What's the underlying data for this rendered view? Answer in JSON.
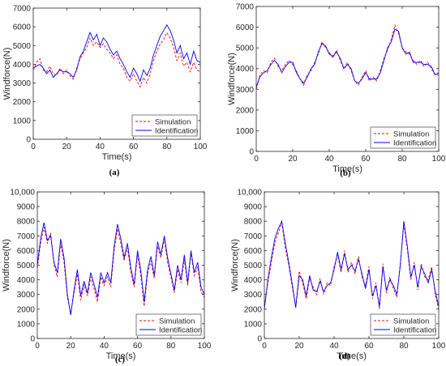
{
  "figure_panels": [
    "(a)",
    "(b)",
    "(c)",
    "(d)"
  ],
  "chart_data": [
    {
      "type": "line",
      "panel_label": "(a)",
      "xlabel": "Time(s)",
      "ylabel": "Windforce(N)",
      "xlim": [
        0,
        100
      ],
      "ylim": [
        0,
        7000
      ],
      "xticks": [
        0,
        20,
        40,
        60,
        80,
        100
      ],
      "yticks": [
        0,
        1000,
        2000,
        3000,
        4000,
        5000,
        6000,
        7000
      ],
      "ytick_labels": [
        "0",
        "1000",
        "2000",
        "3000",
        "4000",
        "5000",
        "6000",
        "7000"
      ],
      "legend": "bottom-right",
      "x": [
        0,
        2,
        4,
        6,
        8,
        10,
        12,
        14,
        16,
        18,
        20,
        22,
        24,
        26,
        28,
        30,
        32,
        34,
        36,
        38,
        40,
        42,
        44,
        46,
        48,
        50,
        52,
        54,
        56,
        58,
        60,
        62,
        64,
        66,
        68,
        70,
        72,
        74,
        76,
        78,
        80,
        82,
        84,
        86,
        88,
        90,
        92,
        94,
        96,
        98,
        100
      ],
      "series": [
        {
          "name": "Simulation",
          "color": "#ff0000",
          "dash": "dashed",
          "values": [
            3700,
            4100,
            4300,
            3700,
            3600,
            3900,
            3500,
            3400,
            3800,
            3500,
            3700,
            3400,
            3200,
            3800,
            4300,
            4600,
            4900,
            5400,
            5000,
            5200,
            4900,
            5100,
            4800,
            4600,
            4300,
            4500,
            4000,
            3800,
            3300,
            3100,
            3500,
            3100,
            2800,
            3300,
            3000,
            3500,
            4200,
            4700,
            5100,
            5300,
            5700,
            5400,
            4900,
            4200,
            4600,
            3900,
            4100,
            3600,
            4100,
            3700,
            3600
          ]
        },
        {
          "name": "Identification",
          "color": "#0000ff",
          "dash": "solid",
          "values": [
            3800,
            3900,
            4000,
            3800,
            3500,
            3700,
            3300,
            3500,
            3700,
            3600,
            3600,
            3500,
            3300,
            3700,
            4400,
            4700,
            5200,
            5700,
            5300,
            5600,
            5000,
            5400,
            5200,
            4800,
            4500,
            4700,
            4300,
            4000,
            3600,
            3300,
            3800,
            3500,
            3100,
            3700,
            3400,
            3800,
            4500,
            5000,
            5500,
            5800,
            6100,
            5800,
            5300,
            4600,
            5000,
            4300,
            4600,
            4000,
            4700,
            4200,
            4100
          ]
        }
      ]
    },
    {
      "type": "line",
      "panel_label": "(b)",
      "xlabel": "Time(s)",
      "ylabel": "Windforce(N)",
      "xlim": [
        0,
        100
      ],
      "ylim": [
        0,
        7000
      ],
      "xticks": [
        0,
        20,
        40,
        60,
        80,
        100
      ],
      "yticks": [
        0,
        1000,
        2000,
        3000,
        4000,
        5000,
        6000,
        7000
      ],
      "ytick_labels": [
        "0",
        "1000",
        "2000",
        "3000",
        "4000",
        "5000",
        "6000",
        "7000"
      ],
      "legend": "bottom-right",
      "x": [
        0,
        2,
        4,
        6,
        8,
        10,
        12,
        14,
        16,
        18,
        20,
        22,
        24,
        26,
        28,
        30,
        32,
        34,
        36,
        38,
        40,
        42,
        44,
        46,
        48,
        50,
        52,
        54,
        56,
        58,
        60,
        62,
        64,
        66,
        68,
        70,
        72,
        74,
        76,
        78,
        80,
        82,
        84,
        86,
        88,
        90,
        92,
        94,
        96,
        98,
        100
      ],
      "series": [
        {
          "name": "Simulation",
          "color": "#ff0000",
          "dash": "dashed",
          "values": [
            3000,
            3700,
            3900,
            3800,
            4300,
            4500,
            4100,
            3900,
            4200,
            4400,
            4200,
            3900,
            3500,
            3200,
            3700,
            3900,
            4300,
            4700,
            5300,
            5000,
            4800,
            4500,
            4900,
            4400,
            4000,
            4300,
            3900,
            3400,
            3200,
            3600,
            3900,
            3400,
            3600,
            3400,
            3900,
            4500,
            4900,
            5400,
            6100,
            5700,
            5000,
            4800,
            4700,
            4400,
            4200,
            4400,
            4100,
            4300,
            4000,
            3700,
            3700
          ]
        },
        {
          "name": "Identification",
          "color": "#0000ff",
          "dash": "solid",
          "values": [
            3100,
            3600,
            3800,
            3900,
            4200,
            4400,
            4200,
            3800,
            4100,
            4300,
            4300,
            3800,
            3500,
            3300,
            3600,
            4000,
            4200,
            4800,
            5200,
            5100,
            4700,
            4600,
            4800,
            4500,
            4000,
            4200,
            4000,
            3400,
            3300,
            3500,
            3800,
            3500,
            3500,
            3500,
            3800,
            4400,
            5000,
            5300,
            5900,
            5800,
            5000,
            4700,
            4800,
            4300,
            4300,
            4300,
            4200,
            4200,
            4100,
            3700,
            3800
          ]
        }
      ]
    },
    {
      "type": "line",
      "panel_label": "(c)",
      "xlabel": "Time(s)",
      "ylabel": "Windforce(N)",
      "xlim": [
        0,
        100
      ],
      "ylim": [
        0,
        10000
      ],
      "xticks": [
        0,
        20,
        40,
        60,
        80,
        100
      ],
      "yticks": [
        0,
        1000,
        2000,
        3000,
        4000,
        5000,
        6000,
        7000,
        8000,
        9000,
        10000
      ],
      "ytick_labels": [
        "0",
        "1000",
        "2000",
        "3000",
        "4000",
        "5000",
        "6000",
        "7000",
        "8000",
        "9000",
        "10,000"
      ],
      "legend": "bottom-right",
      "x": [
        0,
        2,
        4,
        6,
        8,
        10,
        12,
        14,
        16,
        18,
        20,
        22,
        24,
        26,
        28,
        30,
        32,
        34,
        36,
        38,
        40,
        42,
        44,
        46,
        48,
        50,
        52,
        54,
        56,
        58,
        60,
        62,
        64,
        66,
        68,
        70,
        72,
        74,
        76,
        78,
        80,
        82,
        84,
        86,
        88,
        90,
        92,
        94,
        96,
        98,
        100
      ],
      "series": [
        {
          "name": "Simulation",
          "color": "#ff0000",
          "dash": "dashed",
          "values": [
            4800,
            6500,
            7600,
            6500,
            7200,
            5000,
            4200,
            6500,
            5200,
            2800,
            1700,
            3100,
            4400,
            2600,
            3700,
            2900,
            4200,
            3400,
            2500,
            4200,
            3600,
            4200,
            3500,
            6000,
            7500,
            6500,
            5300,
            6200,
            4500,
            3500,
            5700,
            4300,
            2200,
            4400,
            5300,
            4100,
            6300,
            5500,
            6800,
            5200,
            4200,
            3100,
            4700,
            3800,
            5400,
            3600,
            5800,
            4300,
            4900,
            3200,
            2800
          ]
        },
        {
          "name": "Identification",
          "color": "#0000ff",
          "dash": "solid",
          "values": [
            5000,
            6800,
            7900,
            6700,
            7000,
            5200,
            4500,
            6800,
            5500,
            3000,
            1600,
            3300,
            4700,
            2900,
            3900,
            3100,
            4500,
            3700,
            2800,
            4500,
            3800,
            4500,
            3800,
            6300,
            7800,
            6800,
            5500,
            6500,
            4800,
            3700,
            6000,
            4600,
            2500,
            4700,
            5600,
            4300,
            6600,
            5700,
            7000,
            5500,
            4400,
            3300,
            5000,
            4000,
            5700,
            3800,
            6000,
            4500,
            5200,
            3500,
            3000
          ]
        }
      ]
    },
    {
      "type": "line",
      "panel_label": "(d)",
      "xlabel": "Time(s)",
      "ylabel": "Windforce(N)",
      "xlim": [
        0,
        100
      ],
      "ylim": [
        0,
        10000
      ],
      "xticks": [
        0,
        20,
        40,
        60,
        80,
        100
      ],
      "yticks": [
        0,
        1000,
        2000,
        3000,
        4000,
        5000,
        6000,
        7000,
        8000,
        9000,
        10000
      ],
      "ytick_labels": [
        "0",
        "1000",
        "2000",
        "3000",
        "4000",
        "5000",
        "6000",
        "7000",
        "8000",
        "9000",
        "10,000"
      ],
      "legend": "bottom-right",
      "x": [
        0,
        2,
        4,
        6,
        8,
        10,
        12,
        14,
        16,
        18,
        20,
        22,
        24,
        26,
        28,
        30,
        32,
        34,
        36,
        38,
        40,
        42,
        44,
        46,
        48,
        50,
        52,
        54,
        56,
        58,
        60,
        62,
        64,
        66,
        68,
        70,
        72,
        74,
        76,
        78,
        80,
        82,
        84,
        86,
        88,
        90,
        92,
        94,
        96,
        98,
        100
      ],
      "series": [
        {
          "name": "Simulation",
          "color": "#ff0000",
          "dash": "dashed",
          "values": [
            2200,
            3800,
            5200,
            6500,
            7200,
            7900,
            6200,
            5000,
            3500,
            2200,
            4600,
            3800,
            2700,
            4100,
            3500,
            3000,
            4100,
            3000,
            3800,
            3600,
            4900,
            5700,
            4500,
            6000,
            4500,
            5200,
            4400,
            5600,
            4200,
            3600,
            4900,
            2700,
            3800,
            2000,
            5100,
            3100,
            4200,
            3400,
            2800,
            5200,
            7800,
            6100,
            4000,
            5200,
            3300,
            5100,
            4200,
            4000,
            4900,
            3000,
            2000
          ]
        },
        {
          "name": "Identification",
          "color": "#0000ff",
          "dash": "solid",
          "values": [
            2000,
            4000,
            5500,
            6800,
            7500,
            8000,
            6500,
            5200,
            3700,
            2100,
            4300,
            4000,
            2900,
            4300,
            3300,
            3200,
            3900,
            3200,
            3600,
            3800,
            4700,
            5900,
            4700,
            5800,
            4700,
            5000,
            4600,
            5400,
            4400,
            3400,
            4700,
            2900,
            3600,
            2200,
            4900,
            3300,
            4000,
            3600,
            3000,
            5000,
            8000,
            6300,
            4200,
            5000,
            3500,
            4900,
            4400,
            3800,
            4700,
            3200,
            2200
          ]
        }
      ]
    }
  ]
}
